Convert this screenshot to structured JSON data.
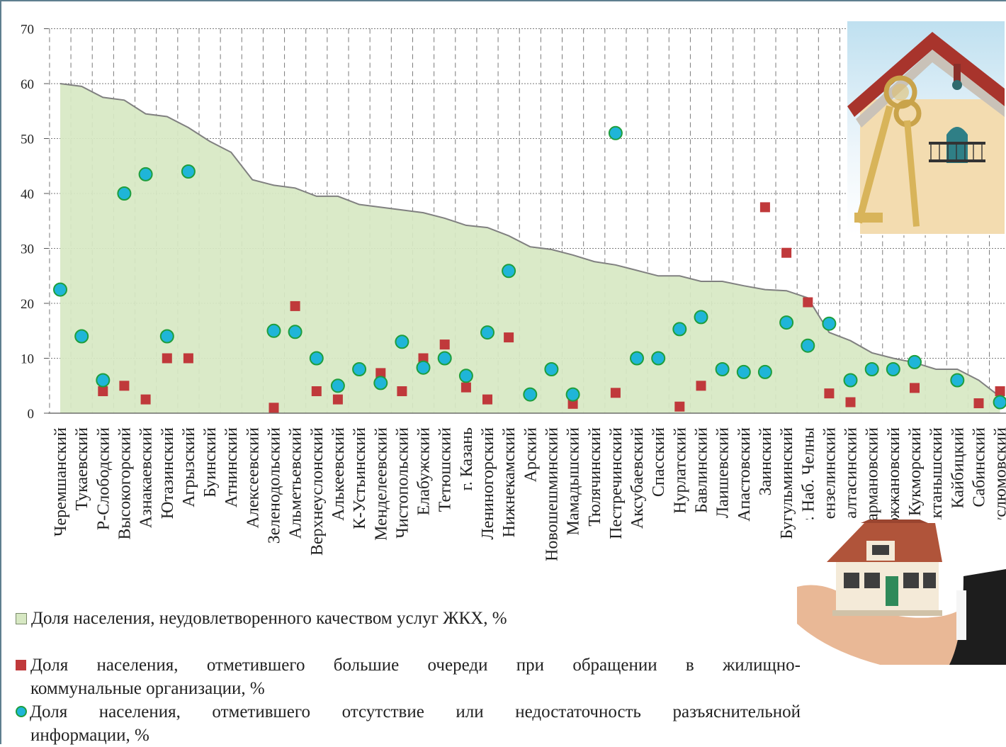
{
  "chart_data": {
    "type": "area+scatter",
    "ylim": [
      0,
      70
    ],
    "yticks": [
      0,
      10,
      20,
      30,
      40,
      50,
      60,
      70
    ],
    "grid": true,
    "categories": [
      "Черемшанский",
      "Тукаевский",
      "Р-Слободский",
      "Высокогорский",
      "Азнакаевский",
      "Ютазинский",
      "Агрызский",
      "Буинский",
      "Атнинский",
      "Алексеевский",
      "Зеленодольский",
      "Альметьевский",
      "Верхнеуслонский",
      "Алькеевский",
      "К-Устьинский",
      "Менделеевский",
      "Чистопольский",
      "Елабужский",
      "Тетюшский",
      "г. Казань",
      "Лениногорский",
      "Нижнекамский",
      "Арский",
      "Новошешминский",
      "Мамадышский",
      "Тюлячинский",
      "Пестречинский",
      "Аксубаевский",
      "Спасский",
      "Нурлатский",
      "Бавлинский",
      "Лаишевский",
      "Апастовский",
      "Заинский",
      "Бугульминский",
      "г. Наб. Челны",
      "Мензелинский",
      "Балтасинский",
      "Сармановский",
      "Дрожжановский",
      "Кукморский",
      "Актанышский",
      "Кайбицкий",
      "Сабинский",
      "Муслюмовский"
    ],
    "series": [
      {
        "name": "Доля населения, неудовлетворенного качеством услуг ЖКХ, %",
        "type": "area",
        "values": [
          60,
          59.5,
          57.5,
          57,
          54.5,
          54,
          52,
          49.5,
          47.5,
          42.5,
          41.5,
          41,
          39.5,
          39.5,
          38,
          37.5,
          37,
          36.5,
          35.5,
          34.2,
          33.8,
          32.3,
          30.3,
          29.8,
          28.8,
          27.6,
          27,
          26,
          25,
          25,
          24,
          24,
          23.2,
          22.5,
          22.3,
          21,
          14.7,
          13.2,
          11,
          10,
          9.2,
          8,
          8,
          6,
          3
        ]
      },
      {
        "name": "Доля населения, отметившего большие очереди при обращении в жилищно-коммунальные организации, %",
        "type": "scatter",
        "marker": "square",
        "color": "#c0393b",
        "values": [
          null,
          null,
          4,
          5,
          2.5,
          10,
          10,
          null,
          null,
          null,
          1,
          19.5,
          4,
          2.5,
          null,
          7.3,
          4,
          10,
          12.5,
          4.7,
          2.5,
          13.8,
          null,
          null,
          1.7,
          null,
          3.7,
          null,
          null,
          1.2,
          5,
          null,
          null,
          37.5,
          29.2,
          20.2,
          3.6,
          2,
          null,
          null,
          4.6,
          null,
          null,
          1.8,
          4
        ]
      },
      {
        "name": "Доля населения, отметившего отсутствие или недостаточность разъяснительной информации, %",
        "type": "scatter",
        "marker": "circle",
        "color": "#1fb5d8",
        "values": [
          22.5,
          14,
          6,
          40,
          43.5,
          14,
          44,
          null,
          null,
          null,
          15,
          14.8,
          10,
          5,
          8,
          5.5,
          13,
          8.3,
          10,
          6.8,
          14.7,
          25.9,
          3.4,
          8,
          3.4,
          null,
          51,
          10,
          10,
          15.3,
          17.5,
          8,
          7.5,
          7.5,
          16.5,
          12.3,
          16.3,
          6,
          8,
          8,
          9.3,
          null,
          6,
          null,
          2
        ]
      }
    ]
  },
  "legend": {
    "area": "Доля населения, неудовлетворенного качеством услуг ЖКХ, %",
    "squares_line1": "Доля населения, отметившего большие очереди при обращении в жилищно-",
    "squares_line2": "коммунальные организации, %",
    "circles_line1": "Доля населения, отметившего отсутствие или недостаточность разъяснительной",
    "circles_line2": "информации, %"
  },
  "colors": {
    "area_fill": "#d7e8c3",
    "area_line": "#808080",
    "square": "#c0393b",
    "circle_fill": "#1fb5d8",
    "circle_edge": "#1f9e3d"
  }
}
